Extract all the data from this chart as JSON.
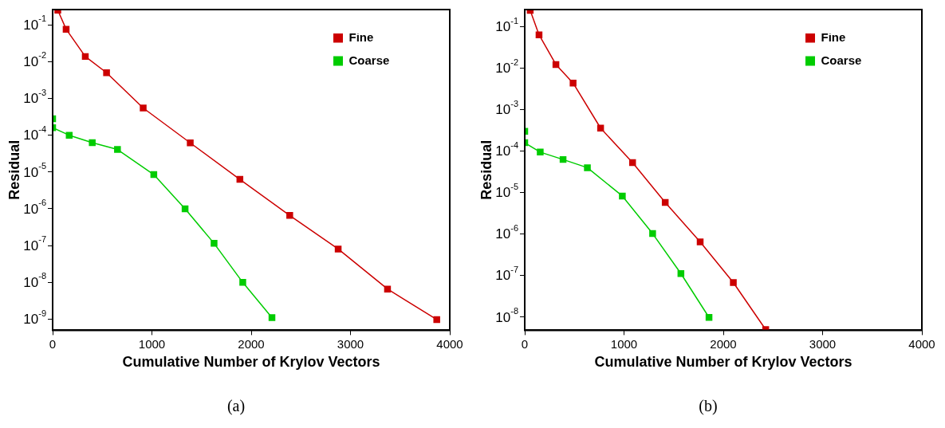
{
  "chart_data": [
    {
      "type": "line",
      "title": "(a)",
      "xlabel": "Cumulative Number of Krylov Vectors",
      "ylabel": "Residual",
      "log": "y",
      "marker": "square",
      "legend": "top right",
      "grid": false,
      "xlim": [
        0,
        4000
      ],
      "xticks": [
        0,
        1000,
        2000,
        3000,
        4000
      ],
      "ylim": [
        5e-10,
        0.26
      ],
      "yticks": [
        {
          "value": 1e-09,
          "label": "10$^{-9}$"
        },
        {
          "value": 1e-08,
          "label": "10$^{-8}$"
        },
        {
          "value": 1e-07,
          "label": "10$^{-7}$"
        },
        {
          "value": 1e-06,
          "label": "10$^{-6}$"
        },
        {
          "value": 1e-05,
          "label": "10$^{-5}$"
        },
        {
          "value": 0.0001,
          "label": "10$^{-4}$"
        },
        {
          "value": 0.001,
          "label": "10$^{-3}$"
        },
        {
          "value": 0.01,
          "label": "10$^{-2}$"
        },
        {
          "value": 0.1,
          "label": "10$^{-1}$"
        }
      ],
      "series": [
        {
          "name": "Fine",
          "color": "#cc0000",
          "x": [
            52,
            136,
            329,
            543,
            912,
            1386,
            1886,
            2388,
            2876,
            3373,
            3869
          ],
          "values": [
            0.25,
            0.076,
            0.0138,
            0.005,
            0.00055,
            6.2e-05,
            6.3e-06,
            6.6e-07,
            8.1e-08,
            6.6e-09,
            9.8e-10
          ]
        },
        {
          "name": "Coarse",
          "color": "#00cc00",
          "x": [
            0,
            0,
            167,
            399,
            653,
            1019,
            1334,
            1626,
            1915,
            2209
          ],
          "values": [
            0.00028,
            0.00016,
            0.0001,
            6.3e-05,
            4.1e-05,
            8.5e-06,
            1e-06,
            1.15e-07,
            1e-08,
            1.1e-09
          ]
        }
      ]
    },
    {
      "type": "line",
      "title": "(b)",
      "xlabel": "Cumulative Number of Krylov Vectors",
      "ylabel": "Residual",
      "log": "y",
      "marker": "square",
      "legend": "top right",
      "grid": false,
      "xlim": [
        0,
        4000
      ],
      "xticks": [
        0,
        1000,
        2000,
        3000,
        4000
      ],
      "ylim": [
        4.8e-09,
        0.26
      ],
      "yticks": [
        {
          "value": 1e-08,
          "label": "10$^{-8}$"
        },
        {
          "value": 1e-07,
          "label": "10$^{-7}$"
        },
        {
          "value": 1e-06,
          "label": "10$^{-6}$"
        },
        {
          "value": 1e-05,
          "label": "10$^{-5}$"
        },
        {
          "value": 0.0001,
          "label": "10$^{-4}$"
        },
        {
          "value": 0.001,
          "label": "10$^{-3}$"
        },
        {
          "value": 0.01,
          "label": "10$^{-2}$"
        },
        {
          "value": 0.1,
          "label": "10$^{-1}$"
        }
      ],
      "series": [
        {
          "name": "Fine",
          "color": "#cc0000",
          "x": [
            55,
            144,
            314,
            487,
            764,
            1086,
            1415,
            1767,
            2101,
            2427
          ],
          "values": [
            0.25,
            0.064,
            0.0123,
            0.0044,
            0.00036,
            5.3e-05,
            5.8e-06,
            6.5e-07,
            6.8e-08,
            5e-09
          ]
        },
        {
          "name": "Coarse",
          "color": "#00cc00",
          "x": [
            0,
            0,
            156,
            386,
            631,
            983,
            1288,
            1573,
            1856
          ],
          "values": [
            0.0003,
            0.00016,
            9.5e-05,
            6.3e-05,
            4e-05,
            8.3e-06,
            1.03e-06,
            1.12e-07,
            9.8e-09
          ]
        }
      ]
    }
  ]
}
